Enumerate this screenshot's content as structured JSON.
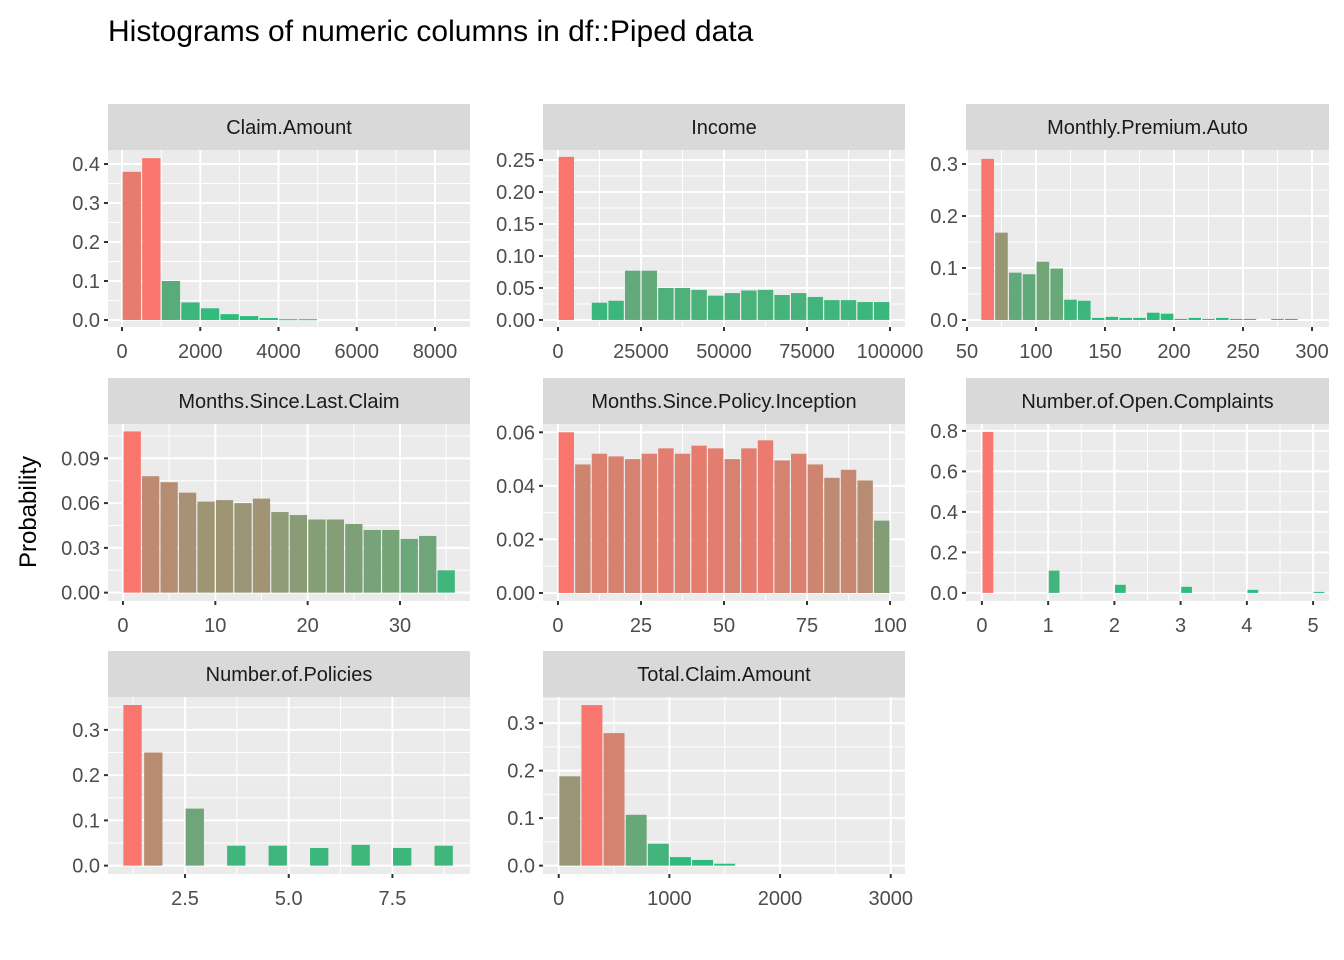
{
  "title": "Histograms of numeric columns in df::Piped data",
  "colors": {
    "low": "#24BF7E",
    "high": "#F8766D",
    "panel_bg": "#EBEBEB",
    "strip_bg": "#D9D9D9",
    "grid": "#FFFFFF"
  },
  "chart_data": {
    "type": "bar",
    "title": "Histograms of numeric columns in df::Piped data",
    "xlabel": "",
    "ylabel": "Probability",
    "grid": true,
    "panels": [
      {
        "name": "Claim.Amount",
        "bin_starts": null,
        "start": 0,
        "binwidth": 500,
        "values": [
          0.38,
          0.415,
          0.1,
          0.045,
          0.03,
          0.015,
          0.01,
          0.005,
          0.002,
          0.002
        ],
        "xlim": [
          -358,
          8895
        ],
        "ylim": [
          -0.018,
          0.436
        ],
        "x_ticks": [
          "0",
          "2000",
          "4000",
          "6000",
          "8000"
        ],
        "y_ticks": [
          "0.0",
          "0.1",
          "0.2",
          "0.3",
          "0.4"
        ]
      },
      {
        "name": "Income",
        "start": 0,
        "binwidth": 5000,
        "values": [
          0.255,
          0,
          0.027,
          0.03,
          0.077,
          0.077,
          0.05,
          0.05,
          0.047,
          0.038,
          0.042,
          0.046,
          0.047,
          0.039,
          0.042,
          0.036,
          0.031,
          0.031,
          0.028,
          0.028
        ],
        "xlim": [
          -4518,
          104518
        ],
        "ylim": [
          -0.011,
          0.2657
        ],
        "x_ticks": [
          "0",
          "25000",
          "50000",
          "75000",
          "100000"
        ],
        "y_ticks": [
          "0.00",
          "0.05",
          "0.10",
          "0.15",
          "0.20",
          "0.25"
        ]
      },
      {
        "name": "Monthly.Premium.Auto",
        "start": 60,
        "binwidth": 10,
        "values": [
          0.31,
          0.168,
          0.091,
          0.088,
          0.112,
          0.099,
          0.039,
          0.037,
          0.004,
          0.006,
          0.004,
          0.004,
          0.014,
          0.012,
          0.002,
          0.004,
          0.002,
          0.004,
          0.002,
          0.002,
          0,
          0.002,
          0.002
        ],
        "xlim": [
          49.3,
          312.3
        ],
        "ylim": [
          -0.0135,
          0.327
        ],
        "x_ticks": [
          "50",
          "100",
          "150",
          "200",
          "250",
          "300"
        ],
        "y_ticks": [
          "0.0",
          "0.1",
          "0.2",
          "0.3"
        ]
      },
      {
        "name": "Months.Since.Last.Claim",
        "start": 0,
        "binwidth": 2,
        "values": [
          0.108,
          0.078,
          0.074,
          0.067,
          0.061,
          0.062,
          0.06,
          0.063,
          0.054,
          0.052,
          0.049,
          0.049,
          0.046,
          0.042,
          0.042,
          0.036,
          0.038,
          0.015
        ],
        "xlim": [
          -1.62,
          37.58
        ],
        "ylim": [
          -0.0056,
          0.113
        ],
        "x_ticks": [
          "0",
          "10",
          "20",
          "30"
        ],
        "y_ticks": [
          "0.00",
          "0.03",
          "0.06",
          "0.09"
        ]
      },
      {
        "name": "Months.Since.Policy.Inception",
        "start": 0,
        "binwidth": 5,
        "values": [
          0.06,
          0.048,
          0.052,
          0.051,
          0.05,
          0.052,
          0.054,
          0.052,
          0.055,
          0.054,
          0.05,
          0.054,
          0.057,
          0.0495,
          0.052,
          0.048,
          0.043,
          0.046,
          0.042,
          0.027
        ],
        "xlim": [
          -4.5,
          104.5
        ],
        "ylim": [
          -0.003,
          0.0631
        ],
        "x_ticks": [
          "0",
          "25",
          "50",
          "75",
          "100"
        ],
        "y_ticks": [
          "0.00",
          "0.02",
          "0.04",
          "0.06"
        ]
      },
      {
        "name": "Number.of.Open.Complaints",
        "bin_starts": [
          0,
          1,
          2,
          3,
          4,
          5
        ],
        "binwidth": 0.18,
        "values": [
          0.795,
          0.11,
          0.04,
          0.03,
          0.015,
          0.005
        ],
        "xlim": [
          -0.24,
          5.24
        ],
        "ylim": [
          -0.04,
          0.834
        ],
        "x_ticks": [
          "0",
          "1",
          "2",
          "3",
          "4",
          "5"
        ],
        "y_ticks": [
          "0.0",
          "0.2",
          "0.4",
          "0.6",
          "0.8"
        ]
      },
      {
        "name": "Number.of.Policies",
        "bin_starts": [
          1,
          1.5,
          2.5,
          3.5,
          4.5,
          5.5,
          6.5,
          7.5,
          8.5
        ],
        "binwidth": 0.47,
        "values": [
          0.355,
          0.25,
          0.126,
          0.044,
          0.044,
          0.039,
          0.046,
          0.039,
          0.044
        ],
        "xlim": [
          0.643,
          9.37
        ],
        "ylim": [
          -0.0185,
          0.3727
        ],
        "x_ticks": [
          "2.5",
          "5.0",
          "7.5"
        ],
        "y_ticks": [
          "0.0",
          "0.1",
          "0.2",
          "0.3"
        ]
      },
      {
        "name": "Total.Claim.Amount",
        "start": 0,
        "binwidth": 200,
        "values": [
          0.188,
          0.338,
          0.279,
          0.107,
          0.046,
          0.018,
          0.012,
          0.004
        ],
        "xlim": [
          -142,
          3129
        ],
        "ylim": [
          -0.0176,
          0.355
        ],
        "x_ticks": [
          "0",
          "1000",
          "2000",
          "3000"
        ],
        "y_ticks": [
          "0.0",
          "0.1",
          "0.2",
          "0.3"
        ]
      }
    ]
  }
}
